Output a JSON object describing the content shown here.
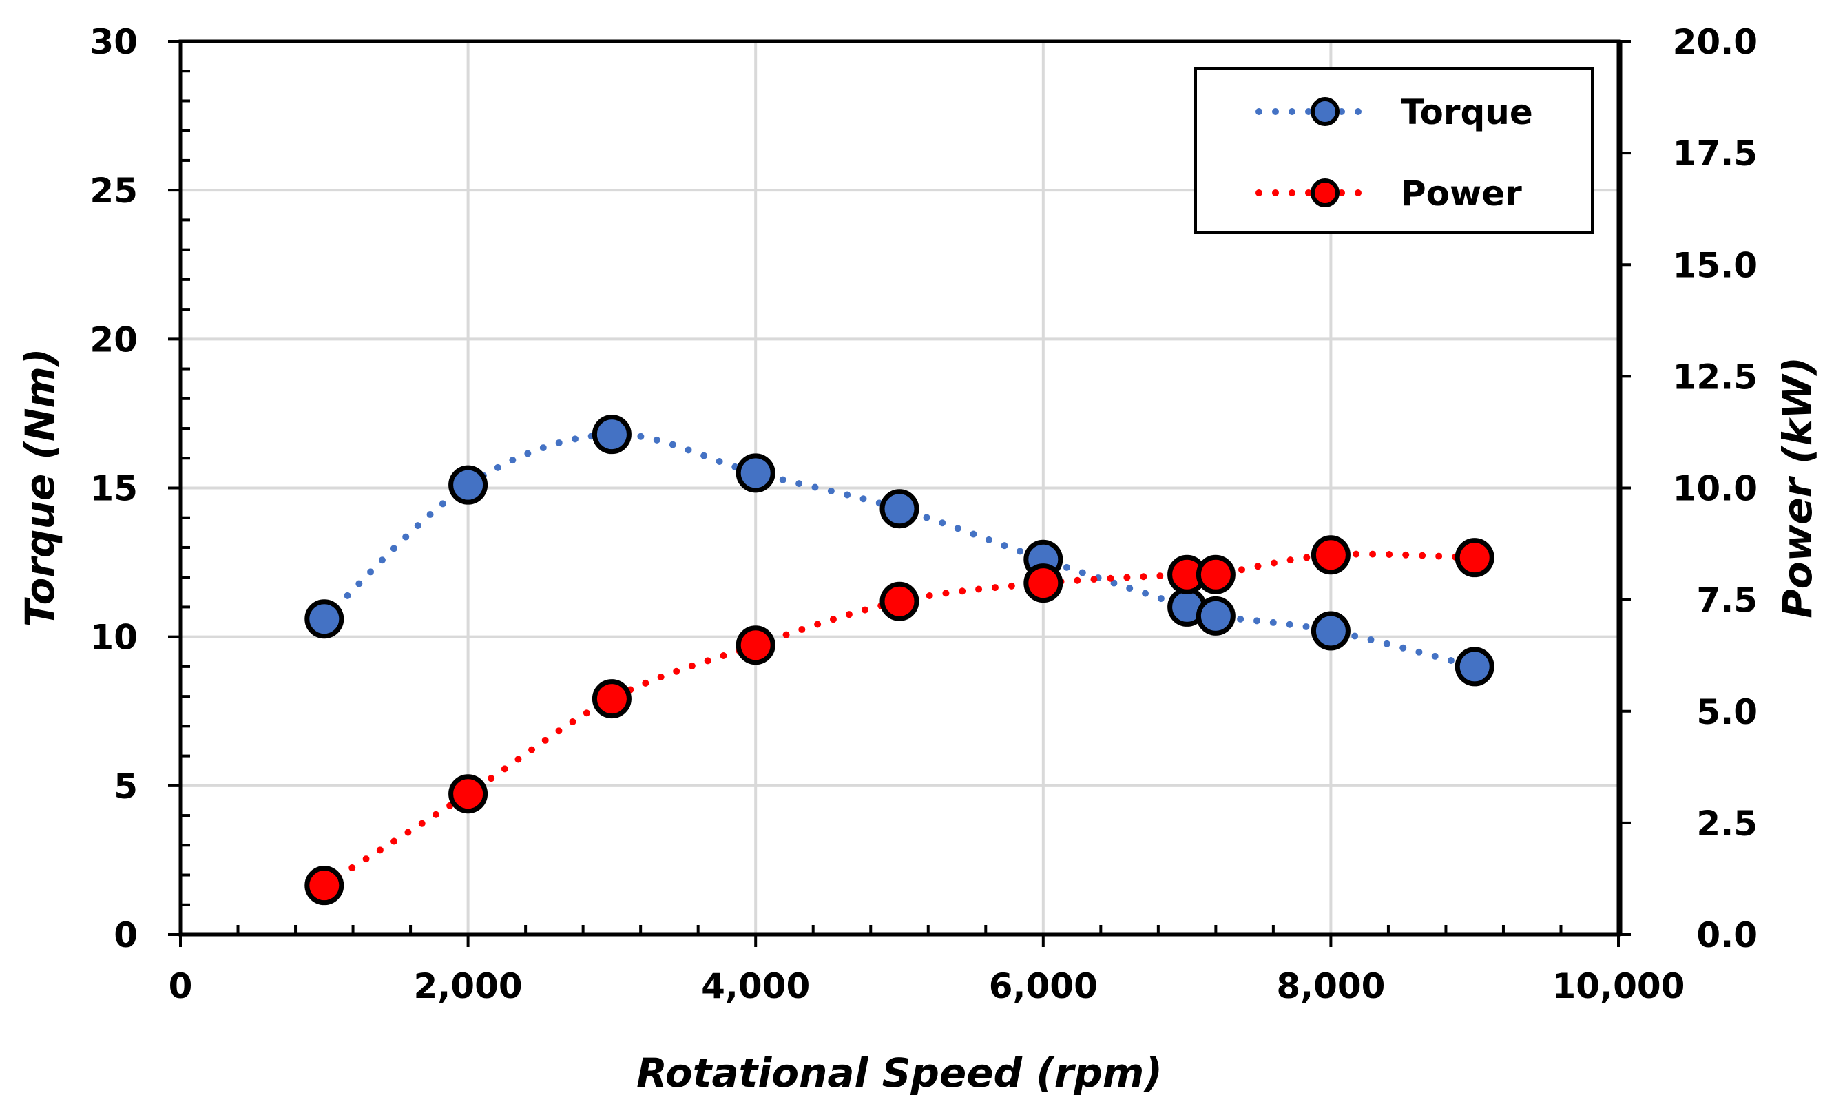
{
  "chart_data": {
    "type": "line",
    "title": "",
    "xlabel": "Rotational Speed (rpm)",
    "ylabel": "Torque (Nm)",
    "y2label": "Power (kW)",
    "xlim": [
      0,
      10000
    ],
    "ylim": [
      0,
      30
    ],
    "y2lim": [
      0,
      20
    ],
    "x_ticks": [
      0,
      2000,
      4000,
      6000,
      8000,
      10000
    ],
    "x_tick_labels": [
      "0",
      "2,000",
      "4,000",
      "6,000",
      "8,000",
      "10,000"
    ],
    "y_ticks": [
      0,
      5,
      10,
      15,
      20,
      25,
      30
    ],
    "y_tick_labels": [
      "0",
      "5",
      "10",
      "15",
      "20",
      "25",
      "30"
    ],
    "y2_ticks": [
      0,
      2.5,
      5,
      7.5,
      10,
      12.5,
      15,
      17.5,
      20
    ],
    "y2_tick_labels": [
      "0.0",
      "2.5",
      "5.0",
      "7.5",
      "10.0",
      "12.5",
      "15.0",
      "17.5",
      "20.0"
    ],
    "grid": true,
    "legend_position": "top-right",
    "series": [
      {
        "name": "Torque",
        "axis": "left",
        "color": "#4472C4",
        "x": [
          1000,
          2000,
          3000,
          4000,
          5000,
          6000,
          7000,
          7200,
          8000,
          9000
        ],
        "values": [
          10.6,
          15.1,
          16.8,
          15.5,
          14.3,
          12.6,
          11.0,
          10.7,
          10.2,
          9.0
        ]
      },
      {
        "name": "Power",
        "axis": "right",
        "color": "#FF0000",
        "x": [
          1000,
          2000,
          3000,
          4000,
          5000,
          6000,
          7000,
          7200,
          8000,
          9000
        ],
        "values": [
          1.1,
          3.15,
          5.28,
          6.48,
          7.46,
          7.87,
          8.06,
          8.06,
          8.5,
          8.44
        ]
      }
    ]
  }
}
